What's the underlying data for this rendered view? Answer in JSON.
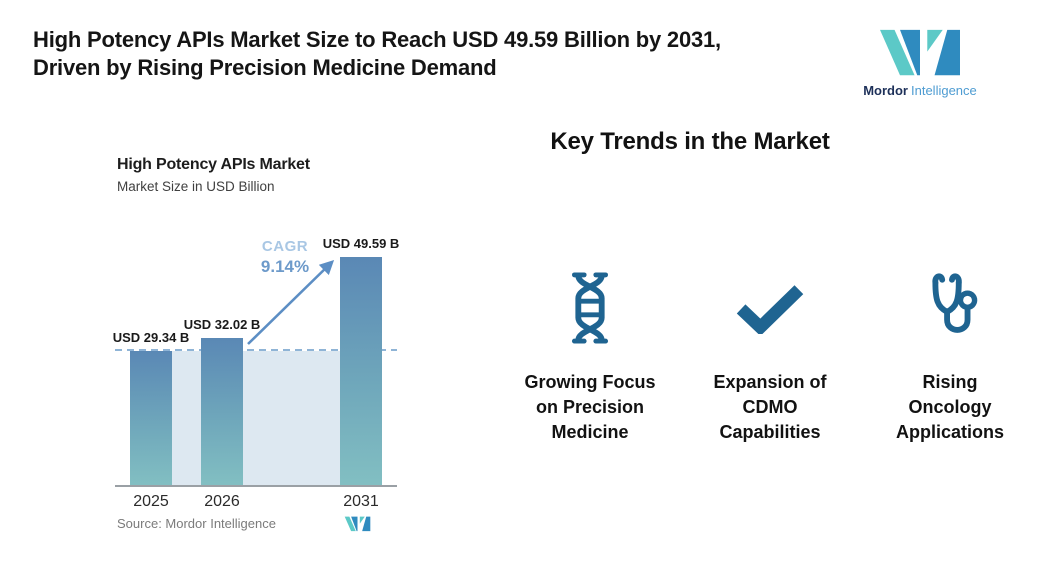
{
  "header": {
    "headline_line1": "High Potency APIs Market Size to Reach USD 49.59 Billion by 2031,",
    "headline_line2": "Driven by Rising Precision Medicine Demand",
    "brand_bold": "Mordor",
    "brand_light": "Intelligence"
  },
  "chart": {
    "title": "High Potency APIs Market",
    "subtitle": "Market Size in USD Billion",
    "cagr_label": "CAGR",
    "cagr_value": "9.14%",
    "source": "Source: Mordor Intelligence"
  },
  "chart_data": {
    "type": "bar",
    "categories": [
      "2025",
      "2026",
      "2031"
    ],
    "values": [
      29.34,
      32.02,
      49.59
    ],
    "bar_labels": [
      "USD 29.34 B",
      "USD 32.02 B",
      "USD 49.59 B"
    ],
    "title": "High Potency APIs Market",
    "ylabel": "Market Size in USD Billion",
    "ylim": [
      0,
      55
    ],
    "grid": false,
    "annotations": {
      "cagr": "9.14%",
      "dashed_reference_level": 29.34
    }
  },
  "trends": {
    "heading": "Key Trends in the Market",
    "items": [
      {
        "icon": "dna-icon",
        "label": "Growing Focus on Precision Medicine",
        "lines": [
          "Growing Focus",
          "on Precision",
          "Medicine"
        ]
      },
      {
        "icon": "checkmark-icon",
        "label": "Expansion of CDMO Capabilities",
        "lines": [
          "Expansion of",
          "CDMO",
          "Capabilities"
        ]
      },
      {
        "icon": "stethoscope-icon",
        "label": "Rising Oncology Applications",
        "lines": [
          "Rising",
          "Oncology",
          "Applications"
        ]
      }
    ]
  },
  "colors": {
    "icon_blue": "#1F6491",
    "bar_top": "#5A88B5",
    "bar_bottom": "#82BFC2",
    "band": "#DDE8F1",
    "dashed_line": "#8FB4D6",
    "arrow": "#5C8EC4",
    "cagr_label": "#A9C7E4",
    "cagr_value": "#6D9ACA",
    "logo_teal": "#5CC9C7",
    "logo_blue": "#2F8BBF",
    "brand_navy": "#1D3059",
    "brand_blue": "#4E9CD2"
  }
}
